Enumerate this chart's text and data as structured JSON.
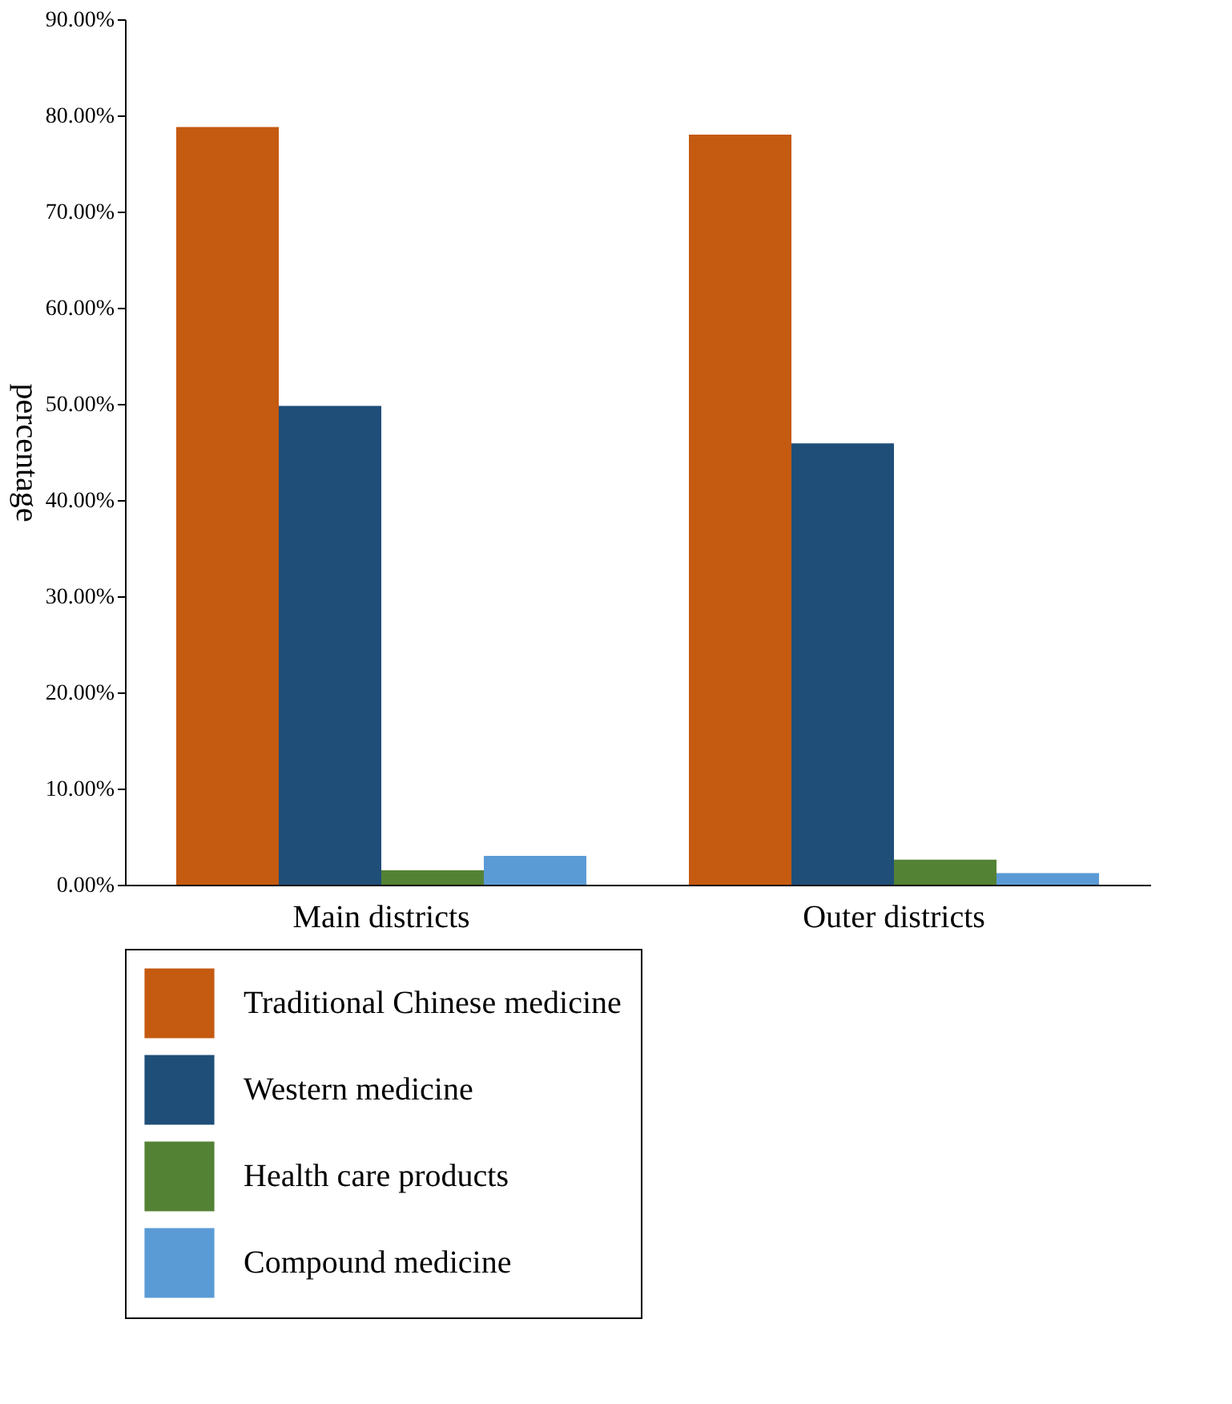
{
  "chart_data": {
    "type": "bar",
    "ylabel": "percentage",
    "categories": [
      "Main districts",
      "Outer districts"
    ],
    "series": [
      {
        "name": "Traditional Chinese medicine",
        "color": "#c55a11",
        "values": [
          78.8,
          78.0
        ]
      },
      {
        "name": "Western medicine",
        "color": "#1f4e79",
        "values": [
          49.8,
          45.9
        ]
      },
      {
        "name": "Health care products",
        "color": "#548235",
        "values": [
          1.5,
          2.6
        ]
      },
      {
        "name": "Compound medicine",
        "color": "#5b9bd5",
        "values": [
          3.0,
          1.2
        ]
      }
    ],
    "ylim": [
      0,
      90
    ],
    "yticks": [
      {
        "value": 0,
        "label": "0.00%"
      },
      {
        "value": 10,
        "label": "10.00%"
      },
      {
        "value": 20,
        "label": "20.00%"
      },
      {
        "value": 30,
        "label": "30.00%"
      },
      {
        "value": 40,
        "label": "40.00%"
      },
      {
        "value": 50,
        "label": "50.00%"
      },
      {
        "value": 60,
        "label": "60.00%"
      },
      {
        "value": 70,
        "label": "70.00%"
      },
      {
        "value": 80,
        "label": "80.00%"
      },
      {
        "value": 90,
        "label": "90.00%"
      }
    ],
    "grid": false,
    "legend": "bottom"
  }
}
